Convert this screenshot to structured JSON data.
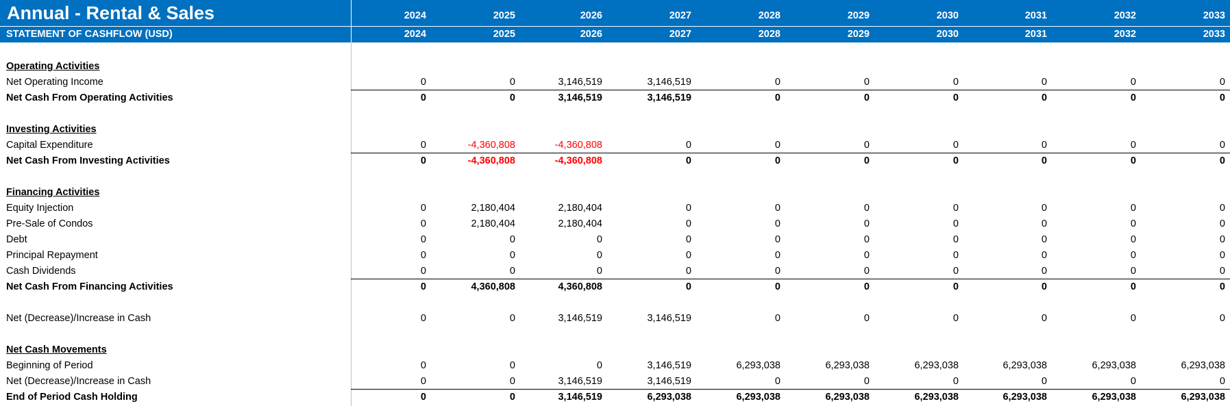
{
  "header": {
    "title": "Annual - Rental & Sales",
    "subtitle": "STATEMENT OF CASHFLOW (USD)",
    "years": [
      "2024",
      "2025",
      "2026",
      "2027",
      "2028",
      "2029",
      "2030",
      "2031",
      "2032",
      "2033"
    ]
  },
  "colors": {
    "header_bg": "#0070c0",
    "negative": "#ff0000"
  },
  "rows": {
    "operating_header": "Operating Activities",
    "net_operating_income": {
      "label": "Net Operating Income",
      "values": [
        "0",
        "0",
        "3,146,519",
        "3,146,519",
        "0",
        "0",
        "0",
        "0",
        "0",
        "0"
      ]
    },
    "net_cash_operating": {
      "label": "Net Cash From Operating Activities",
      "values": [
        "0",
        "0",
        "3,146,519",
        "3,146,519",
        "0",
        "0",
        "0",
        "0",
        "0",
        "0"
      ]
    },
    "investing_header": "Investing Activities",
    "capital_expenditure": {
      "label": "Capital Expenditure",
      "values": [
        "0",
        "-4,360,808",
        "-4,360,808",
        "0",
        "0",
        "0",
        "0",
        "0",
        "0",
        "0"
      ]
    },
    "net_cash_investing": {
      "label": "Net Cash From Investing Activities",
      "values": [
        "0",
        "-4,360,808",
        "-4,360,808",
        "0",
        "0",
        "0",
        "0",
        "0",
        "0",
        "0"
      ]
    },
    "financing_header": "Financing Activities",
    "equity_injection": {
      "label": "Equity Injection",
      "values": [
        "0",
        "2,180,404",
        "2,180,404",
        "0",
        "0",
        "0",
        "0",
        "0",
        "0",
        "0"
      ]
    },
    "pre_sale_condos": {
      "label": "Pre-Sale of Condos",
      "values": [
        "0",
        "2,180,404",
        "2,180,404",
        "0",
        "0",
        "0",
        "0",
        "0",
        "0",
        "0"
      ]
    },
    "debt": {
      "label": "Debt",
      "values": [
        "0",
        "0",
        "0",
        "0",
        "0",
        "0",
        "0",
        "0",
        "0",
        "0"
      ]
    },
    "principal_repayment": {
      "label": "Principal Repayment",
      "values": [
        "0",
        "0",
        "0",
        "0",
        "0",
        "0",
        "0",
        "0",
        "0",
        "0"
      ]
    },
    "cash_dividends": {
      "label": "Cash Dividends",
      "values": [
        "0",
        "0",
        "0",
        "0",
        "0",
        "0",
        "0",
        "0",
        "0",
        "0"
      ]
    },
    "net_cash_financing": {
      "label": "Net Cash From Financing Activities",
      "values": [
        "0",
        "4,360,808",
        "4,360,808",
        "0",
        "0",
        "0",
        "0",
        "0",
        "0",
        "0"
      ]
    },
    "net_change_cash": {
      "label": "Net (Decrease)/Increase in Cash",
      "values": [
        "0",
        "0",
        "3,146,519",
        "3,146,519",
        "0",
        "0",
        "0",
        "0",
        "0",
        "0"
      ]
    },
    "movements_header": "Net Cash Movements",
    "beginning_of_period": {
      "label": "Beginning of Period",
      "values": [
        "0",
        "0",
        "0",
        "3,146,519",
        "6,293,038",
        "6,293,038",
        "6,293,038",
        "6,293,038",
        "6,293,038",
        "6,293,038"
      ]
    },
    "movement_net_change": {
      "label": "Net (Decrease)/Increase in Cash",
      "values": [
        "0",
        "0",
        "3,146,519",
        "3,146,519",
        "0",
        "0",
        "0",
        "0",
        "0",
        "0"
      ]
    },
    "end_of_period": {
      "label": "End of Period Cash Holding",
      "values": [
        "0",
        "0",
        "3,146,519",
        "6,293,038",
        "6,293,038",
        "6,293,038",
        "6,293,038",
        "6,293,038",
        "6,293,038",
        "6,293,038"
      ]
    }
  }
}
